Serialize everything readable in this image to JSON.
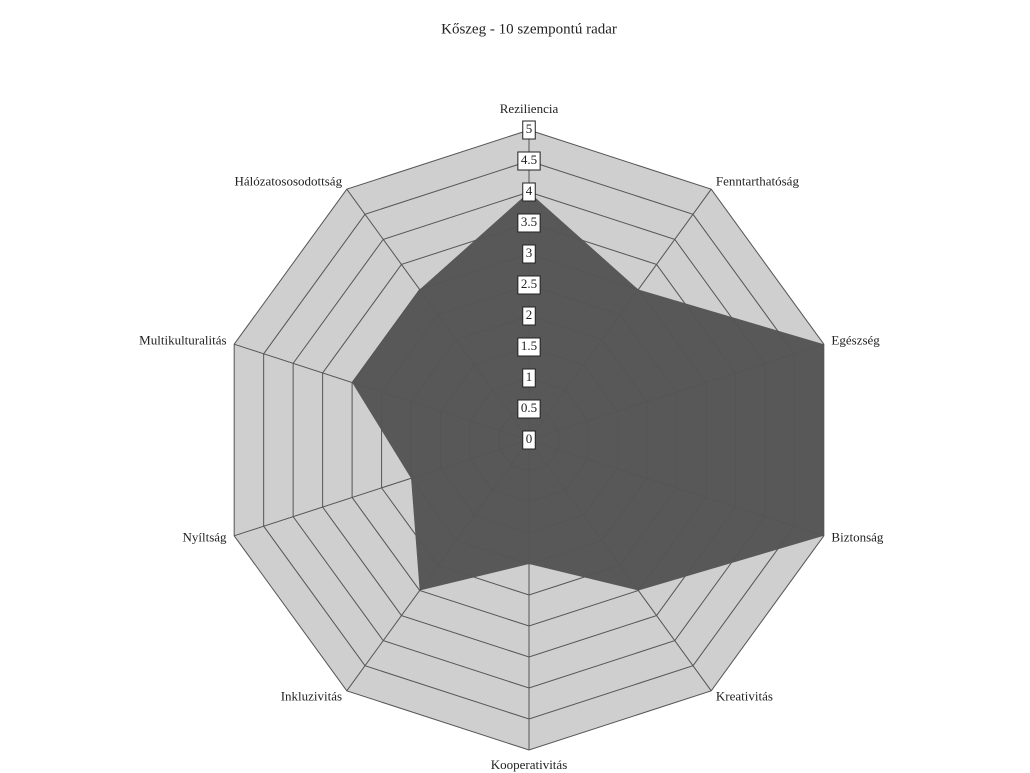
{
  "chart_data": {
    "type": "radar",
    "title": "Kőszeg - 10 szempontú radar",
    "categories": [
      "Reziliencia",
      "Fenntarthatóság",
      "Egészség",
      "Biztonság",
      "Kreativitás",
      "Kooperativitás",
      "Inkluzivitás",
      "Nyíltság",
      "Multikulturalitás",
      "Hálózatososodottság"
    ],
    "values": [
      4,
      3,
      5,
      5,
      3,
      2,
      3,
      2,
      3,
      3
    ],
    "color": "#585858",
    "ylim": [
      0,
      5
    ],
    "yticks": [
      0,
      0.5,
      1,
      1.5,
      2,
      2.5,
      3,
      3.5,
      4,
      4.5,
      5
    ],
    "grid": true
  }
}
